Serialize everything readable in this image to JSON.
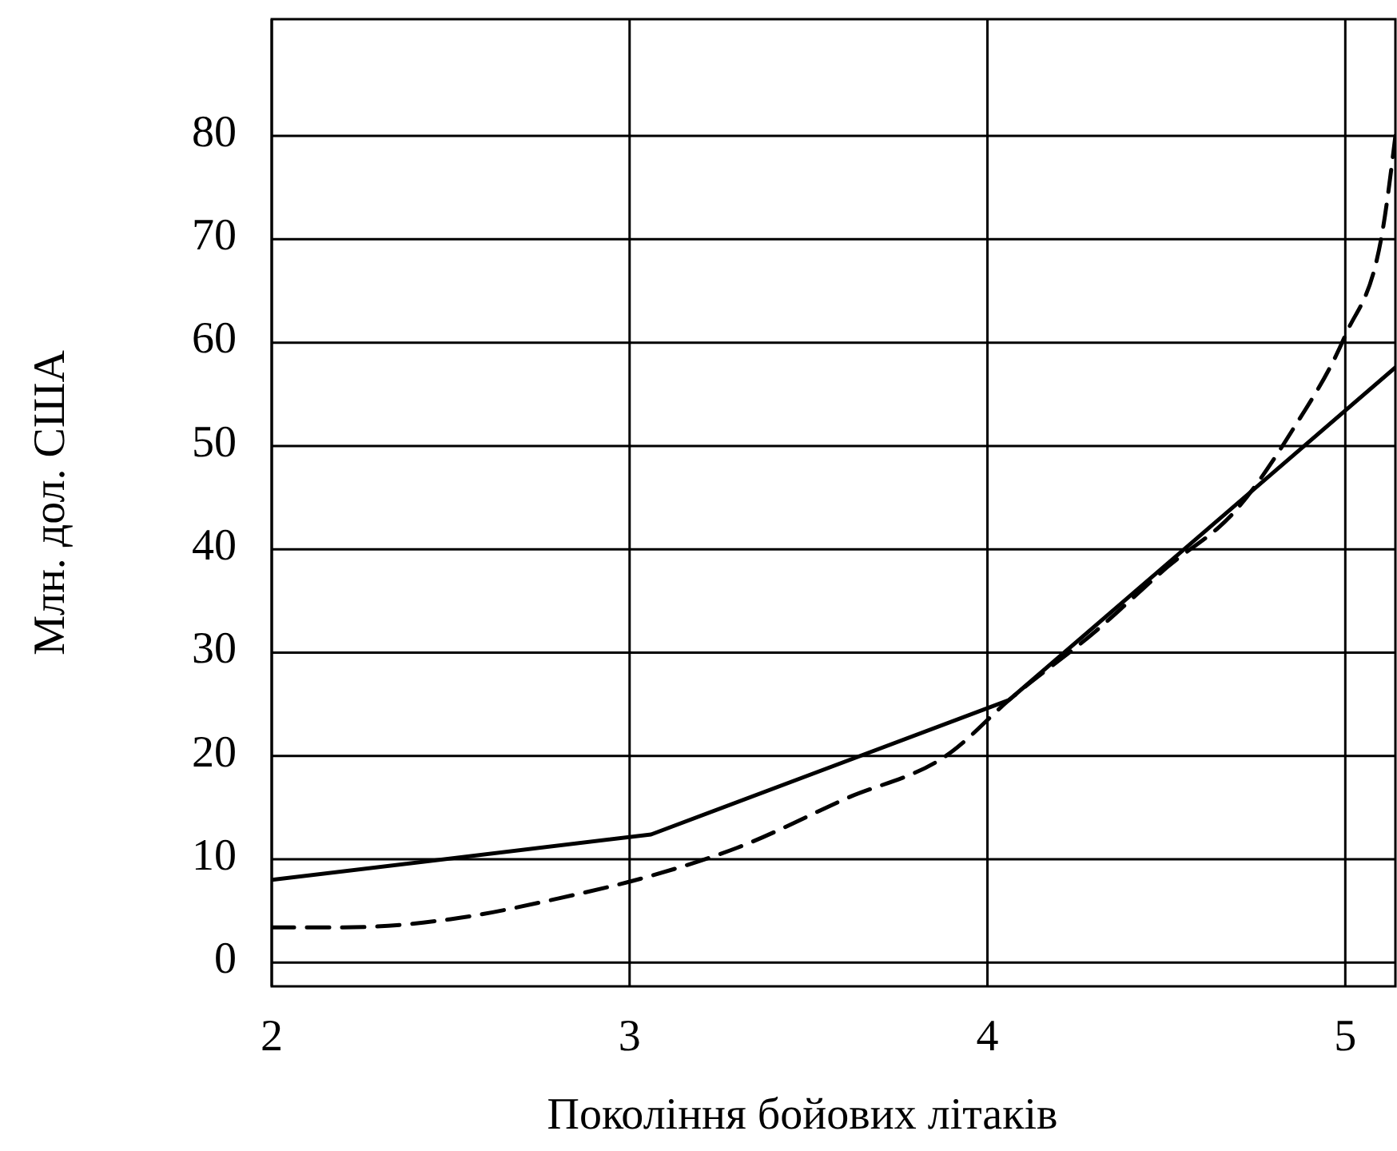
{
  "chart_data": {
    "type": "line",
    "xlabel": "Покоління бойових літаків",
    "ylabel": "Млн. дол. США",
    "xlim": [
      2,
      5.14
    ],
    "xticks": [
      2,
      3,
      4,
      5
    ],
    "ylim": [
      -2.3,
      91.3
    ],
    "yticks": [
      0,
      10,
      20,
      30,
      40,
      50,
      60,
      70,
      80
    ],
    "grid": true,
    "marker": "none",
    "series": [
      {
        "color": "#000000",
        "line_style": "solid",
        "x": [
          2,
          3.06,
          4.06,
          5.14
        ],
        "values": [
          8,
          12.4,
          25.4,
          57.6
        ]
      },
      {
        "color": "#000000",
        "line_style": "dashed",
        "x": [
          2,
          2.2,
          2.5,
          2.8,
          3.06,
          3.3,
          3.6,
          3.9,
          4.06,
          4.3,
          4.5,
          4.7,
          4.85,
          5.0,
          5.1,
          5.14
        ],
        "values": [
          3.4,
          3.4,
          4.2,
          6.2,
          8.4,
          11.1,
          15.8,
          20.4,
          25.4,
          32,
          38.2,
          44,
          51.4,
          60.7,
          70,
          80
        ]
      }
    ]
  }
}
